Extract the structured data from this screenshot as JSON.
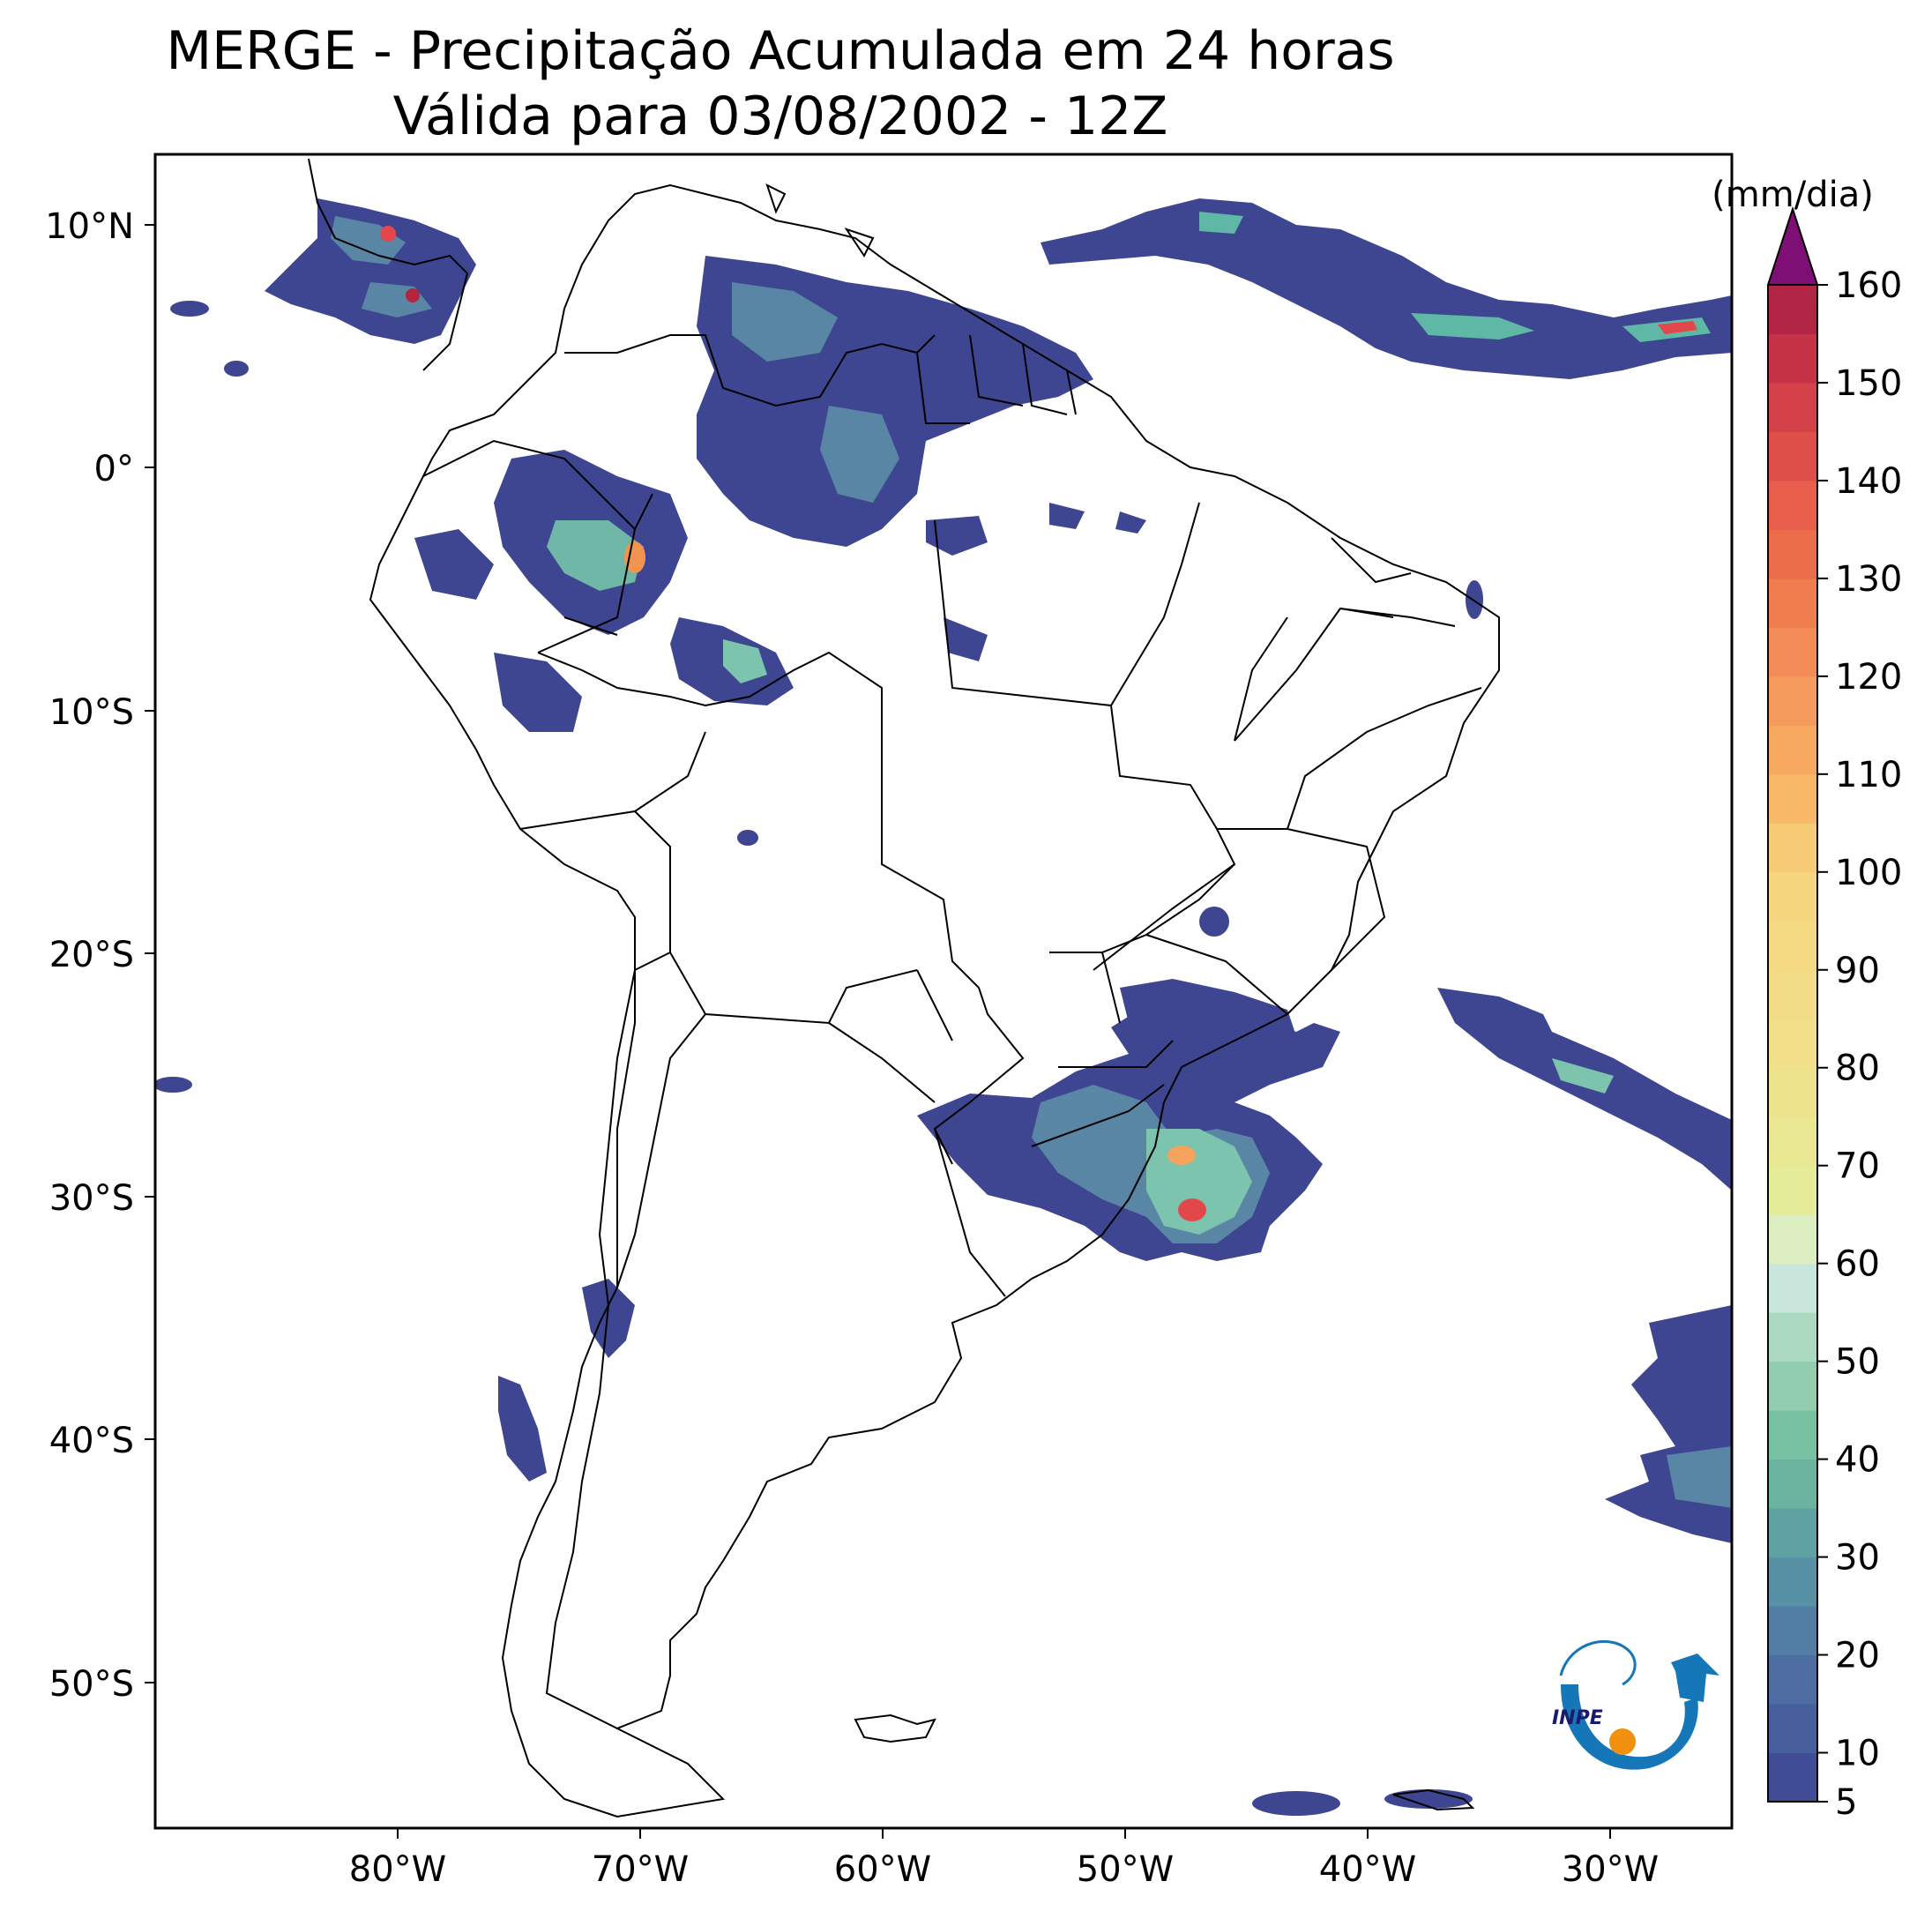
{
  "title": {
    "line1": "MERGE - Precipitação Acumulada em 24 horas",
    "line2": "Válida para 03/08/2002 - 12Z"
  },
  "map": {
    "lon_range": [
      -90,
      -25
    ],
    "lat_range": [
      -56,
      13
    ],
    "lat_ticks": [
      "10°N",
      "0°",
      "10°S",
      "20°S",
      "30°S",
      "40°S",
      "50°S"
    ],
    "lon_ticks": [
      "80°W",
      "70°W",
      "60°W",
      "50°W",
      "40°W",
      "30°W"
    ]
  },
  "colorbar": {
    "unit": "(mm/dia)",
    "ticks": [
      "5",
      "10",
      "20",
      "30",
      "40",
      "50",
      "60",
      "70",
      "80",
      "90",
      "100",
      "110",
      "120",
      "130",
      "140",
      "150",
      "160"
    ],
    "extend": "max",
    "colors": {
      "low": "#3f4691",
      "mid_low": "#4e6fa2",
      "mid": "#5fb8a6",
      "mid_high": "#d7ebe6",
      "yellow": "#e9ea87",
      "orange": "#f6a45d",
      "red": "#e2484b",
      "dark_red": "#b3243f",
      "over": "#7e0f74"
    }
  },
  "logo": {
    "text": "INPE"
  }
}
